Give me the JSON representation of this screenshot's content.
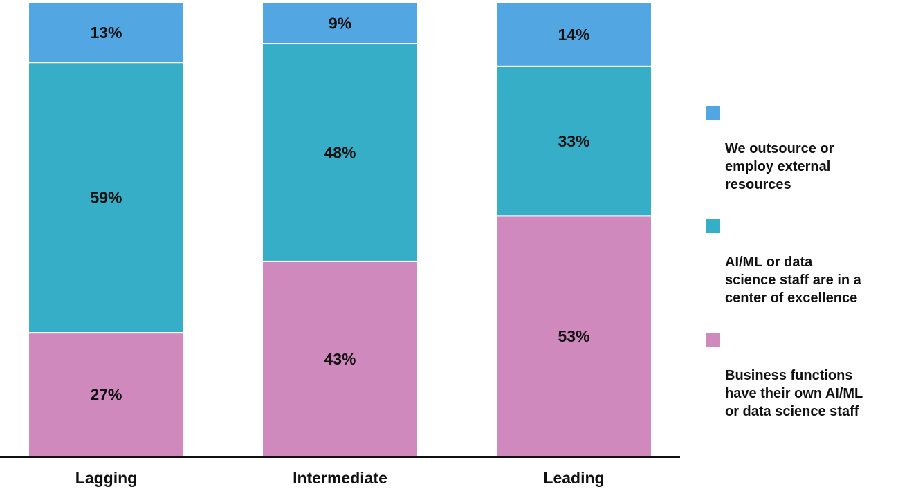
{
  "chart_data": {
    "type": "bar",
    "stacked": true,
    "categories": [
      "Lagging",
      "Intermediate",
      "Leading"
    ],
    "series": [
      {
        "name": "Business functions have their own AI/ML or data science staff",
        "values": [
          27,
          43,
          53
        ],
        "color": "#D089BC"
      },
      {
        "name": "AI/ML or data science staff are in a center of excellence",
        "values": [
          59,
          48,
          33
        ],
        "color": "#36AEC8"
      },
      {
        "name": "We outsource or employ external resources",
        "values": [
          13,
          9,
          14
        ],
        "color": "#52A6E2"
      }
    ],
    "value_suffix": "%",
    "legend_position": "right",
    "grid": false
  },
  "legend": [
    {
      "label": "We outsource or\nemploy external\nresources",
      "color": "#52A6E2"
    },
    {
      "label": "AI/ML or data\nscience staff are in a\ncenter of excellence",
      "color": "#36AEC8"
    },
    {
      "label": "Business functions\nhave their own AI/ML\nor data science staff",
      "color": "#D089BC"
    }
  ]
}
